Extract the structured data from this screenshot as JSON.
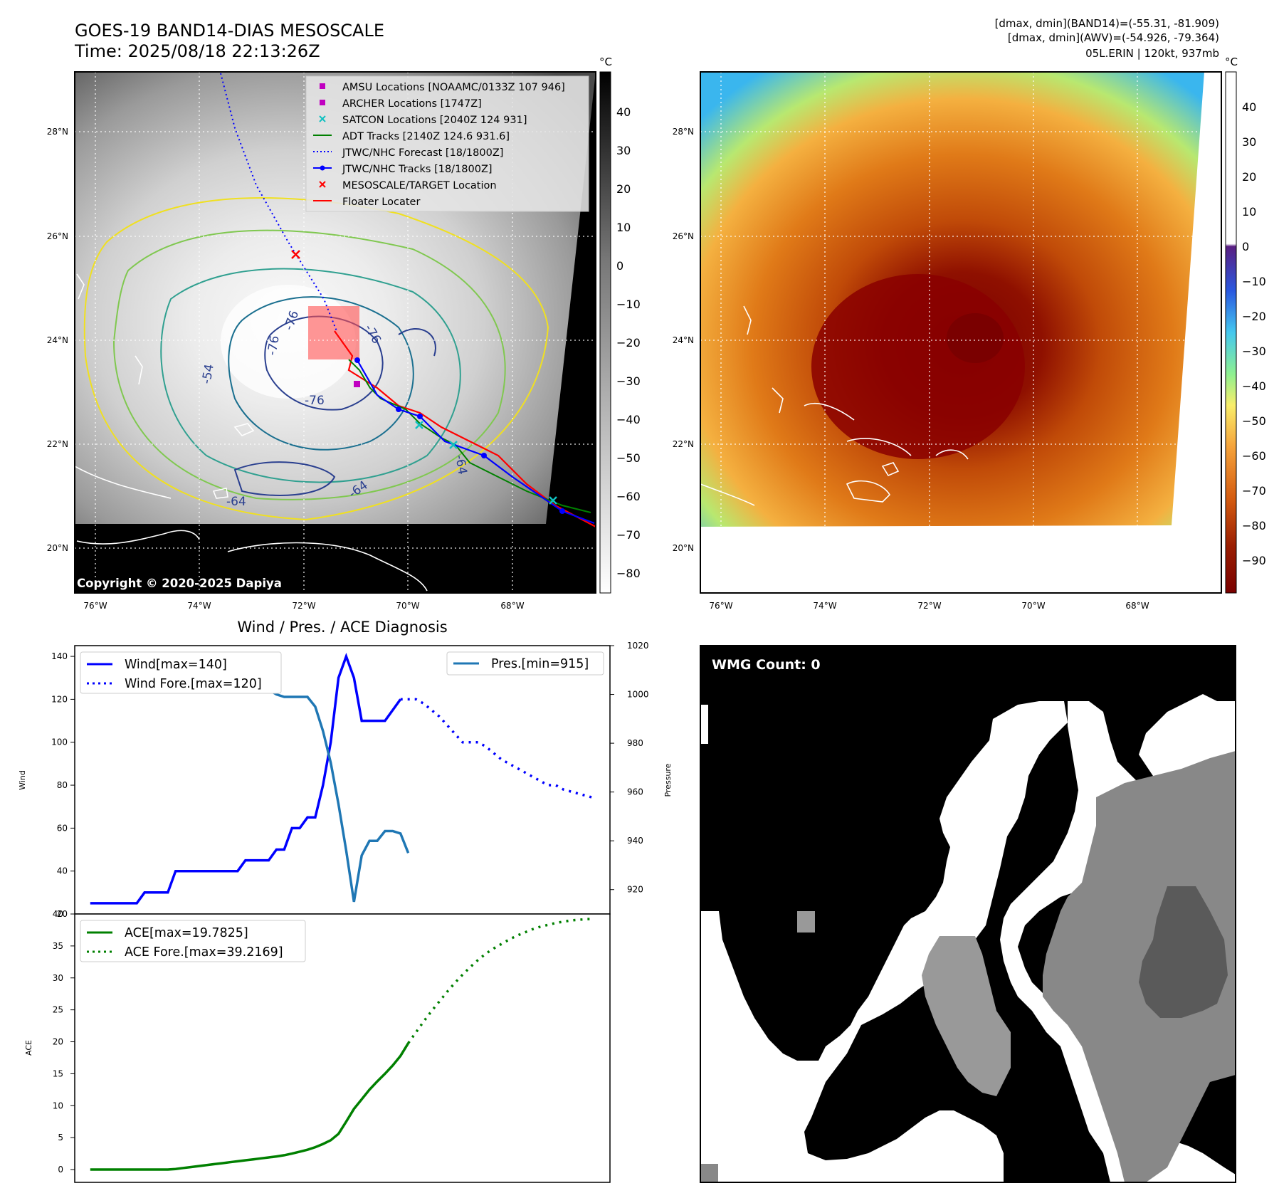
{
  "header": {
    "title_line1": "GOES-19 BAND14-DIAS MESOSCALE",
    "title_line2": "Time: 2025/08/18 22:13:26Z",
    "right_line1": "[dmax, dmin](BAND14)=(-55.31, -81.909)",
    "right_line2": "[dmax, dmin](AWV)=(-54.926, -79.364)",
    "right_line3": "05L.ERIN | 120kt, 937mb"
  },
  "map_axes": {
    "lat_labels": [
      "28°N",
      "26°N",
      "24°N",
      "22°N",
      "20°N"
    ],
    "lon_labels": [
      "76°W",
      "74°W",
      "72°W",
      "70°W",
      "68°W"
    ]
  },
  "ir_panel": {
    "copyright": "Copyright © 2020-2025 Dapiya",
    "legend": [
      {
        "label": "AMSU Locations [NOAAMC/0133Z 107 946]",
        "marker": "square",
        "color": "#c000c0"
      },
      {
        "label": "ARCHER Locations [1747Z]",
        "marker": "square",
        "color": "#c000c0"
      },
      {
        "label": "SATCON Locations [2040Z 124 931]",
        "marker": "x",
        "color": "#10c0c0"
      },
      {
        "label": "ADT Tracks [2140Z 124.6 931.6]",
        "marker": "line",
        "color": "#008000"
      },
      {
        "label": "JTWC/NHC Forecast [18/1800Z]",
        "marker": "dotted",
        "color": "#0000ff"
      },
      {
        "label": "JTWC/NHC Tracks [18/1800Z]",
        "marker": "line-dot",
        "color": "#0000ff"
      },
      {
        "label": "MESOSCALE/TARGET Location",
        "marker": "x",
        "color": "#ff0000"
      },
      {
        "label": "Floater Locater",
        "marker": "line",
        "color": "#ff0000"
      }
    ],
    "contour_labels": [
      "-76",
      "-76",
      "-76",
      "-76",
      "-64",
      "-64",
      "-54",
      "-64"
    ],
    "colorbar": {
      "unit": "°C",
      "ticks": [
        "40",
        "30",
        "20",
        "10",
        "0",
        "−10",
        "−20",
        "−30",
        "−40",
        "−50",
        "−60",
        "−70",
        "−80"
      ]
    }
  },
  "awv_panel": {
    "colorbar": {
      "unit": "°C",
      "ticks": [
        "40",
        "30",
        "20",
        "10",
        "0",
        "−10",
        "−20",
        "−30",
        "−40",
        "−50",
        "−60",
        "−70",
        "−80",
        "−90"
      ]
    }
  },
  "diagnosis": {
    "title": "Wind / Pres. / ACE Diagnosis",
    "wind_ylabel": "Wind",
    "pres_ylabel": "Pressure",
    "ace_ylabel": "ACE",
    "wind_ticks": [
      "140",
      "120",
      "100",
      "80",
      "60",
      "40",
      "20"
    ],
    "pres_ticks": [
      "1020",
      "1000",
      "980",
      "960",
      "940",
      "920"
    ],
    "ace_ticks": [
      "40",
      "35",
      "30",
      "25",
      "20",
      "15",
      "10",
      "5",
      "0"
    ],
    "legend_wind": "Wind[max=140]",
    "legend_wind_fore": "Wind Fore.[max=120]",
    "legend_pres": "Pres.[min=915]",
    "legend_ace": "ACE[max=19.7825]",
    "legend_ace_fore": "ACE Fore.[max=39.2169]"
  },
  "wmg": {
    "label": "WMG Count: 0"
  },
  "chart_data": [
    {
      "type": "line",
      "title": "Wind / Pres. / ACE Diagnosis",
      "ylabel": "Wind",
      "ylim": [
        20,
        145
      ],
      "x": [
        0,
        1,
        2,
        3,
        4,
        5,
        6,
        7,
        8,
        9,
        10,
        11,
        12,
        13,
        14,
        15,
        16,
        17,
        18,
        19,
        20,
        21,
        22,
        23,
        24,
        25,
        26,
        27,
        28,
        29,
        30,
        31,
        32,
        33,
        34,
        35,
        36,
        37,
        38,
        39,
        40,
        41,
        42,
        43,
        44,
        45,
        46,
        47,
        48,
        49,
        50,
        51,
        52,
        53,
        54,
        55,
        56,
        57,
        58,
        59,
        60,
        61,
        62,
        63,
        64,
        65
      ],
      "xlim": [
        -2,
        67
      ],
      "series": [
        {
          "name": "Wind[max=140]",
          "axis": "wind",
          "style": "solid",
          "color": "#0000ff",
          "x": [
            0,
            1,
            2,
            3,
            4,
            5,
            6,
            7,
            8,
            9,
            10,
            11,
            12,
            13,
            14,
            15,
            16,
            17,
            18,
            19,
            20,
            21,
            22,
            23,
            24,
            25,
            26,
            27,
            28,
            29,
            30,
            31,
            32,
            33,
            34,
            35,
            36,
            37,
            38,
            39,
            40
          ],
          "values": [
            25,
            25,
            25,
            25,
            25,
            25,
            25,
            30,
            30,
            30,
            30,
            40,
            40,
            40,
            40,
            40,
            40,
            40,
            40,
            40,
            45,
            45,
            45,
            45,
            50,
            50,
            60,
            60,
            65,
            65,
            80,
            100,
            130,
            140,
            130,
            110,
            110,
            110,
            110,
            115,
            120
          ]
        },
        {
          "name": "Wind Fore.[max=120]",
          "axis": "wind",
          "style": "dotted",
          "color": "#0000ff",
          "x": [
            40,
            41,
            42,
            43,
            44,
            45,
            46,
            47,
            48,
            49,
            50,
            51,
            52,
            53,
            54,
            55,
            56,
            57,
            58,
            59,
            60,
            61,
            62,
            63,
            64,
            65
          ],
          "values": [
            120,
            120,
            120,
            118,
            115,
            112,
            108,
            104,
            100,
            100,
            100,
            98,
            95,
            92,
            90,
            88,
            86,
            84,
            82,
            80,
            80,
            78,
            77,
            76,
            75,
            74
          ]
        },
        {
          "name": "Pres.[min=915]",
          "axis": "pressure",
          "style": "solid",
          "color": "#1f77b4",
          "ylim": [
            910,
            1020
          ],
          "x": [
            0,
            1,
            2,
            3,
            4,
            5,
            6,
            7,
            8,
            9,
            10,
            11,
            12,
            13,
            14,
            15,
            16,
            17,
            18,
            19,
            20,
            21,
            22,
            23,
            24,
            25,
            26,
            27,
            28,
            29,
            30,
            31,
            32,
            33,
            34,
            35,
            36,
            37,
            38,
            39,
            40,
            41
          ],
          "values": [
            1016,
            1016,
            1009,
            1008,
            1007,
            1007,
            1007,
            1007,
            1007,
            1008,
            1008,
            1007,
            1007,
            1008,
            1007,
            1005,
            1004,
            1003,
            1003,
            1003,
            1002,
            1002,
            1002,
            1002,
            1000,
            999,
            999,
            999,
            999,
            995,
            985,
            972,
            955,
            936,
            915,
            934,
            940,
            940,
            944,
            944,
            943,
            935
          ]
        },
        {
          "name": "ACE[max=19.7825]",
          "axis": "ace",
          "style": "solid",
          "color": "#008000",
          "ylim": [
            -2,
            40
          ],
          "x": [
            0,
            1,
            2,
            3,
            4,
            5,
            6,
            7,
            8,
            9,
            10,
            11,
            12,
            13,
            14,
            15,
            16,
            17,
            18,
            19,
            20,
            21,
            22,
            23,
            24,
            25,
            26,
            27,
            28,
            29,
            30,
            31,
            32,
            33,
            34,
            35,
            36,
            37,
            38,
            39,
            40,
            41
          ],
          "values": [
            0,
            0,
            0,
            0,
            0,
            0,
            0,
            0,
            0,
            0,
            0,
            0.1,
            0.25,
            0.4,
            0.55,
            0.7,
            0.85,
            1.0,
            1.15,
            1.3,
            1.45,
            1.6,
            1.75,
            1.9,
            2.05,
            2.25,
            2.5,
            2.8,
            3.1,
            3.5,
            4.0,
            4.6,
            5.6,
            7.5,
            9.5,
            11,
            12.5,
            13.8,
            15,
            16.3,
            17.8,
            19.78
          ]
        },
        {
          "name": "ACE Fore.[max=39.2169]",
          "axis": "ace",
          "style": "dotted",
          "color": "#008000",
          "ylim": [
            -2,
            40
          ],
          "x": [
            41,
            42,
            43,
            44,
            45,
            46,
            47,
            48,
            49,
            50,
            51,
            52,
            53,
            54,
            55,
            56,
            57,
            58,
            59,
            60,
            61,
            62,
            63,
            64,
            65
          ],
          "values": [
            19.78,
            21.5,
            23.2,
            24.8,
            26.3,
            27.8,
            29.2,
            30.5,
            31.7,
            32.8,
            33.8,
            34.6,
            35.3,
            36.0,
            36.6,
            37.1,
            37.6,
            38.0,
            38.3,
            38.6,
            38.8,
            39.0,
            39.1,
            39.2,
            39.22
          ]
        }
      ]
    }
  ],
  "colors": {
    "wind": "#0000ff",
    "pressure": "#1f77b4",
    "ace": "#008000",
    "floater": "#ff0000"
  }
}
